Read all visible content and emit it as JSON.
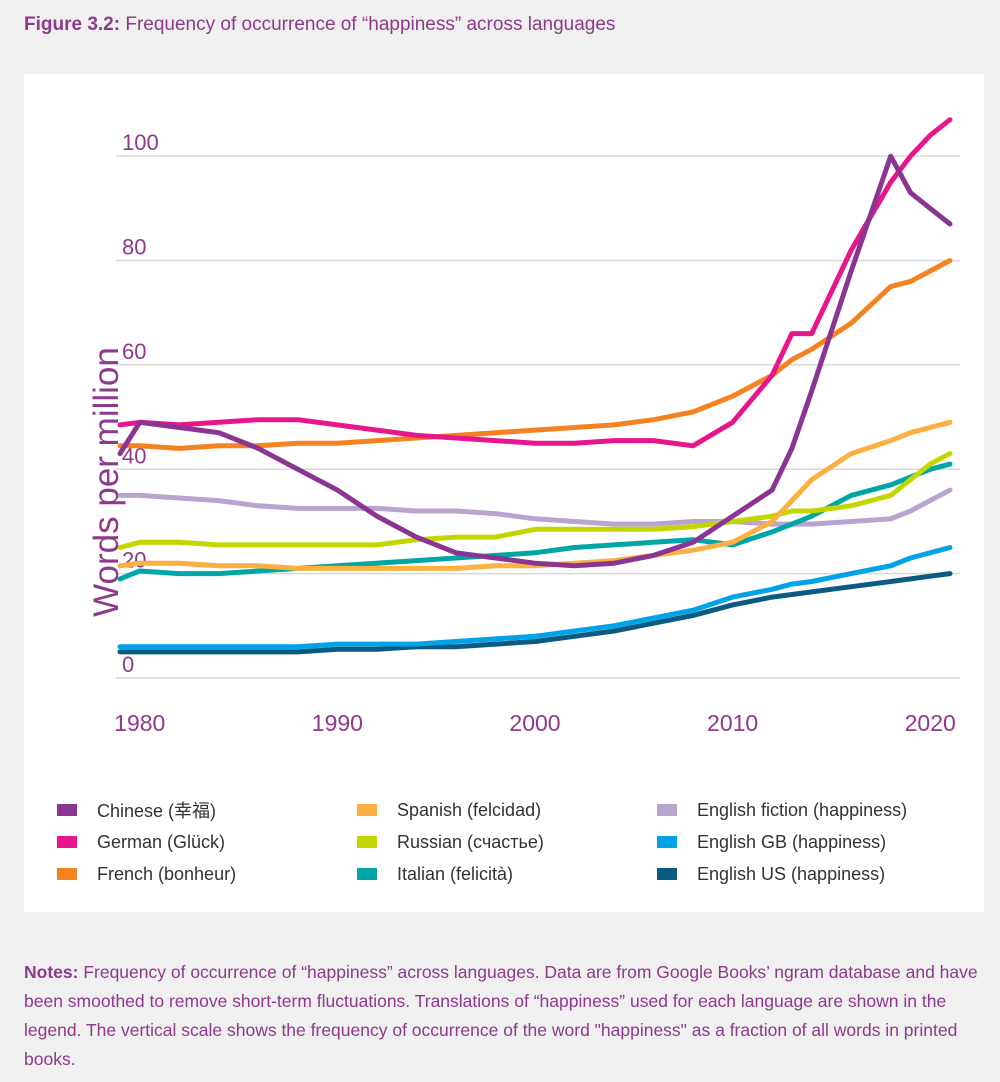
{
  "figure": {
    "label": "Figure 3.2:",
    "title": "Frequency of occurrence of “happiness” across languages"
  },
  "notes": {
    "label": "Notes:",
    "text": "Frequency of occurrence of “happiness” across languages. Data are from Google Books’ ngram database and have been smoothed to remove short-term fluctuations. Translations of “happiness” used for each language are shown in the legend. The vertical scale shows the frequency of occurrence of the word \"happiness\" as a fraction of all words in printed books."
  },
  "chart_data": {
    "type": "line",
    "title": "Frequency of occurrence of “happiness” across languages",
    "xlabel": "",
    "ylabel": "Words per million",
    "xlim": [
      1979,
      2021
    ],
    "ylim": [
      0,
      110
    ],
    "xticks": [
      1980,
      1990,
      2000,
      2010,
      2020
    ],
    "yticks": [
      0,
      20,
      40,
      60,
      80,
      100
    ],
    "grid": "horizontal",
    "legend_position": "bottom",
    "x": [
      1979,
      1980,
      1982,
      1984,
      1986,
      1988,
      1990,
      1992,
      1994,
      1996,
      1998,
      2000,
      2002,
      2004,
      2006,
      2008,
      2010,
      2012,
      2013,
      2014,
      2016,
      2018,
      2019,
      2020,
      2021
    ],
    "series": [
      {
        "name": "Chinese (幸福)",
        "color": "#8b3593",
        "values": [
          43,
          49,
          48,
          47,
          44,
          40,
          36,
          31,
          27,
          24,
          23,
          22,
          21.5,
          22,
          23.5,
          26,
          31,
          36,
          44,
          55,
          78,
          100,
          93,
          90,
          87
        ]
      },
      {
        "name": "German (Glück)",
        "color": "#e8168c",
        "values": [
          48.5,
          49,
          48.5,
          49,
          49.5,
          49.5,
          48.5,
          47.5,
          46.5,
          46,
          45.5,
          45,
          45,
          45.5,
          45.5,
          44.5,
          49,
          58,
          66,
          66,
          82,
          95,
          100,
          104,
          107
        ]
      },
      {
        "name": "French (bonheur)",
        "color": "#f58220",
        "values": [
          44.5,
          44.5,
          44,
          44.5,
          44.5,
          45,
          45,
          45.5,
          46,
          46.5,
          47,
          47.5,
          48,
          48.5,
          49.5,
          51,
          54,
          58,
          61,
          63,
          68,
          75,
          76,
          78,
          80
        ]
      },
      {
        "name": "Spanish (felcidad)",
        "color": "#fbb040",
        "values": [
          21.5,
          22,
          22,
          21.5,
          21.5,
          21,
          21,
          21,
          21,
          21,
          21.5,
          21.5,
          22,
          22.5,
          23.5,
          24.5,
          26,
          30,
          34,
          38,
          43,
          45.5,
          47,
          48,
          49
        ]
      },
      {
        "name": "Russian (счастье)",
        "color": "#c4d600",
        "values": [
          25,
          26,
          26,
          25.5,
          25.5,
          25.5,
          25.5,
          25.5,
          26.5,
          27,
          27,
          28.5,
          28.5,
          28.5,
          28.5,
          29,
          30,
          31,
          32,
          32,
          33,
          35,
          38,
          41,
          43
        ]
      },
      {
        "name": "Italian (felicità)",
        "color": "#00a6a6",
        "values": [
          19,
          20.5,
          20,
          20,
          20.5,
          21,
          21.5,
          22,
          22.5,
          23,
          23.5,
          24,
          25,
          25.5,
          26,
          26.5,
          25.5,
          28,
          29.5,
          31,
          35,
          37,
          38.5,
          40,
          41
        ]
      },
      {
        "name": "English fiction (happiness)",
        "color": "#b9a3cf",
        "values": [
          35,
          35,
          34.5,
          34,
          33,
          32.5,
          32.5,
          32.5,
          32,
          32,
          31.5,
          30.5,
          30,
          29.5,
          29.5,
          30,
          30,
          29.5,
          29.5,
          29.5,
          30,
          30.5,
          32,
          34,
          36
        ]
      },
      {
        "name": "English GB (happiness)",
        "color": "#00a3e8",
        "values": [
          6,
          6,
          6,
          6,
          6,
          6,
          6.5,
          6.5,
          6.5,
          7,
          7.5,
          8,
          9,
          10,
          11.5,
          13,
          15.5,
          17,
          18,
          18.5,
          20,
          21.5,
          23,
          24,
          25
        ]
      },
      {
        "name": "English US (happiness)",
        "color": "#0b5a82",
        "values": [
          5,
          5,
          5,
          5,
          5,
          5,
          5.5,
          5.5,
          6,
          6,
          6.5,
          7,
          8,
          9,
          10.5,
          12,
          14,
          15.5,
          16,
          16.5,
          17.5,
          18.5,
          19,
          19.5,
          20
        ]
      }
    ]
  }
}
